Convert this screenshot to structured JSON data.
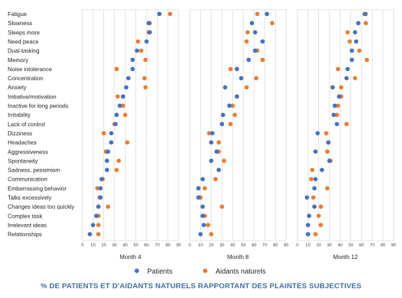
{
  "chart_data": {
    "type": "scatter",
    "categories": [
      "Fatigue",
      "Slowness",
      "Sleeps more",
      "Need peace",
      "Dual-tasking",
      "Memory",
      "Noise intolerance",
      "Concentration",
      "Anxiety",
      "Initiative/motivation",
      "Inactive for long periods",
      "Irritability",
      "Lack of control",
      "Dizziness",
      "Headaches",
      "Aggressiveness",
      "Spontaneity",
      "Sadness, pessimism",
      "Communication",
      "Embarrassing behavior",
      "Talks excessively",
      "Changes ideas too quickly",
      "Complex task",
      "Irrelevant ideas",
      "Relationships"
    ],
    "xlim": [
      0,
      90
    ],
    "xticks": [
      "0",
      "10",
      "20",
      "30",
      "40",
      "50",
      "60",
      "70",
      "80",
      "90"
    ],
    "legend": {
      "placement": "bottom-center"
    },
    "caption": "% DE PATIENTS ET D'AIDANTS NATURELS RAPPORTANT DES PLAINTES SUBJECTIVES",
    "colors": {
      "patients": "#4472c4",
      "aidants": "#ed7d31",
      "grid": "#d9d9d9",
      "caption": "#3b6fb0"
    },
    "panels": [
      {
        "title": "Month 4",
        "series": [
          {
            "name": "Patients",
            "values": [
              72,
              62,
              63,
              60,
              51,
              47,
              47,
              43,
              41,
              38,
              35,
              32,
              31,
              27,
              27,
              24,
              23,
              23,
              18,
              17,
              17,
              15,
              13,
              10,
              7
            ]
          },
          {
            "name": "Aidants naturels",
            "values": [
              82,
              63,
              62,
              52,
              55,
              59,
              32,
              58,
              59,
              33,
              38,
              40,
              30,
              20,
              42,
              22,
              34,
              32,
              19,
              14,
              16,
              24,
              15,
              15,
              15
            ]
          }
        ]
      },
      {
        "title": "Month 8",
        "series": [
          {
            "name": "Patients",
            "values": [
              72,
              58,
              61,
              68,
              61,
              55,
              44,
              48,
              33,
              44,
              37,
              31,
              30,
              21,
              20,
              25,
              20,
              27,
              12,
              8,
              8,
              12,
              12,
              13,
              10
            ]
          },
          {
            "name": "Aidants naturels",
            "values": [
              63,
              77,
              54,
              53,
              63,
              68,
              38,
              62,
              53,
              44,
              40,
              42,
              38,
              18,
              27,
              27,
              32,
              27,
              24,
              14,
              10,
              30,
              14,
              17,
              20
            ]
          }
        ]
      },
      {
        "title": "Month 12",
        "series": [
          {
            "name": "Patients",
            "values": [
              63,
              57,
              54,
              55,
              51,
              51,
              47,
              46,
              33,
              39,
              35,
              34,
              37,
              19,
              29,
              17,
              30,
              23,
              17,
              16,
              9,
              16,
              11,
              10,
              10
            ]
          },
          {
            "name": "Aidants naturels",
            "values": [
              64,
              64,
              47,
              49,
              58,
              65,
              38,
              54,
              41,
              41,
              38,
              37,
              46,
              27,
              29,
              28,
              31,
              14,
              13,
              28,
              15,
              22,
              20,
              22,
              17
            ]
          }
        ]
      }
    ]
  }
}
